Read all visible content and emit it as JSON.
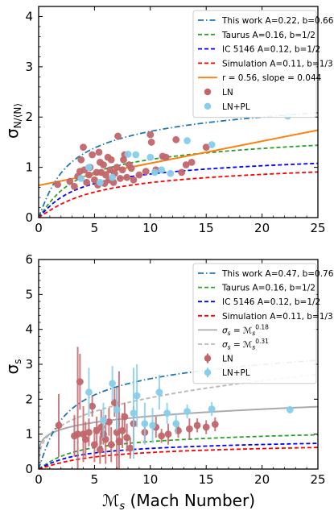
{
  "chart_data": [
    {
      "type": "scatter",
      "xlabel_math": "ℳ",
      "xlabel_sub": "s",
      "xlabel_rest": " (Mach Number)",
      "ylabel_main": "σ",
      "ylabel_sub": "N/⟨N⟩",
      "xlim": [
        0,
        25
      ],
      "ylim": [
        0,
        4.2
      ],
      "xticks": [
        "0",
        "5",
        "10",
        "15",
        "20",
        "25"
      ],
      "yticks": [
        "0",
        "1",
        "2",
        "3",
        "4"
      ],
      "legend_position": "top-right",
      "curves": [
        {
          "name": "This work A=0.22, b=0.66",
          "A": 0.22,
          "b": 0.66,
          "color": "#1f77b4",
          "dash": "dashdot"
        },
        {
          "name": "Taurus A=0.16, b=1/2",
          "A": 0.16,
          "b": 0.5,
          "color": "#2ca02c",
          "dash": "dashed"
        },
        {
          "name": "IC 5146 A=0.12, b=1/2",
          "A": 0.12,
          "b": 0.5,
          "color": "#0000ff",
          "dash": "dashed"
        },
        {
          "name": "Simulation A=0.11, b=1/3",
          "A": 0.11,
          "b": 0.3333,
          "color": "#ff0000",
          "dash": "dashed"
        }
      ],
      "fit_line": {
        "name": "r = 0.56, slope = 0.044",
        "intercept": 0.64,
        "slope": 0.044,
        "color": "#ff7f0e"
      },
      "series": [
        {
          "name": "LN",
          "color": "#c1666b",
          "points": [
            [
              1.7,
              0.66
            ],
            [
              2.8,
              0.72
            ],
            [
              3.2,
              0.62
            ],
            [
              3.5,
              0.82
            ],
            [
              3.7,
              0.92
            ],
            [
              3.8,
              1.15
            ],
            [
              4.0,
              1.4
            ],
            [
              4.1,
              0.95
            ],
            [
              4.3,
              0.7
            ],
            [
              4.5,
              0.85
            ],
            [
              4.6,
              1.0
            ],
            [
              4.8,
              1.25
            ],
            [
              5.0,
              0.75
            ],
            [
              5.2,
              0.9
            ],
            [
              5.3,
              0.65
            ],
            [
              5.4,
              1.3
            ],
            [
              5.5,
              1.1
            ],
            [
              5.6,
              0.9
            ],
            [
              5.8,
              1.05
            ],
            [
              5.9,
              0.68
            ],
            [
              6.0,
              0.85
            ],
            [
              6.2,
              1.2
            ],
            [
              6.3,
              0.75
            ],
            [
              6.4,
              0.95
            ],
            [
              6.5,
              1.15
            ],
            [
              6.7,
              0.7
            ],
            [
              6.8,
              0.88
            ],
            [
              7.0,
              1.0
            ],
            [
              7.1,
              1.62
            ],
            [
              7.3,
              0.78
            ],
            [
              7.5,
              0.95
            ],
            [
              7.6,
              1.15
            ],
            [
              7.7,
              1.25
            ],
            [
              7.9,
              0.8
            ],
            [
              8.1,
              1.05
            ],
            [
              8.3,
              0.98
            ],
            [
              8.5,
              0.75
            ],
            [
              9.0,
              0.85
            ],
            [
              9.6,
              0.92
            ],
            [
              10.0,
              1.65
            ],
            [
              10.1,
              1.5
            ],
            [
              10.5,
              0.95
            ],
            [
              11.1,
              1.22
            ],
            [
              11.4,
              1.2
            ],
            [
              12.3,
              1.55
            ],
            [
              12.8,
              0.9
            ],
            [
              13.2,
              1.05
            ],
            [
              13.7,
              1.1
            ],
            [
              15.0,
              1.4
            ]
          ]
        },
        {
          "name": "LN+PL",
          "color": "#87ceeb",
          "points": [
            [
              3.8,
              0.78
            ],
            [
              4.5,
              1.0
            ],
            [
              5.5,
              0.7
            ],
            [
              6.6,
              0.8
            ],
            [
              8.0,
              1.26
            ],
            [
              8.7,
              1.25
            ],
            [
              10.0,
              1.2
            ],
            [
              10.4,
              0.9
            ],
            [
              11.0,
              0.95
            ],
            [
              11.8,
              0.88
            ],
            [
              13.3,
              1.53
            ],
            [
              15.5,
              1.45
            ],
            [
              22.3,
              2.02
            ]
          ]
        }
      ]
    },
    {
      "type": "scatter",
      "xlabel_math": "ℳ",
      "xlabel_sub": "s",
      "xlabel_rest": " (Mach Number)",
      "ylabel_main": "σ",
      "ylabel_sub": "s",
      "xlim": [
        0,
        25
      ],
      "ylim": [
        0,
        6
      ],
      "xticks": [
        "0",
        "5",
        "10",
        "15",
        "20",
        "25"
      ],
      "yticks": [
        "0",
        "1",
        "2",
        "3",
        "4",
        "5",
        "6"
      ],
      "legend_position": "top-right",
      "curves": [
        {
          "name": "This work A=0.47, b=0.76",
          "A": 0.47,
          "b": 0.76,
          "color": "#1f77b4",
          "dash": "dashdot"
        },
        {
          "name": "Taurus A=0.16, b=1/2",
          "A": 0.16,
          "b": 0.5,
          "color": "#2ca02c",
          "dash": "dashed"
        },
        {
          "name": "IC 5146 A=0.12, b=1/2",
          "A": 0.12,
          "b": 0.5,
          "color": "#0000ff",
          "dash": "dashed"
        },
        {
          "name": "Simulation A=0.11, b=1/3",
          "A": 0.11,
          "b": 0.3333,
          "color": "#ff0000",
          "dash": "dashed"
        }
      ],
      "power_curves": [
        {
          "label_lhs": "σ",
          "label_lhs_sub": "s",
          "label_eq": " = ℳ",
          "label_rhs_sub": "s",
          "label_sup": "0.18",
          "exponent": 0.18,
          "color": "#aaaaaa",
          "dash": "solid"
        },
        {
          "label_lhs": "σ",
          "label_lhs_sub": "s",
          "label_eq": " = ℳ",
          "label_rhs_sub": "s",
          "label_sup": "0.31",
          "exponent": 0.31,
          "color": "#bbbbbb",
          "dash": "dashed"
        }
      ],
      "series": [
        {
          "name": "LN",
          "color": "#c1666b",
          "points": [
            [
              1.8,
              1.25,
              0.9
            ],
            [
              3.2,
              0.95,
              0.6
            ],
            [
              3.5,
              1.0,
              2.5
            ],
            [
              3.7,
              2.5,
              0.8
            ],
            [
              4.0,
              1.0,
              0.8
            ],
            [
              4.2,
              0.85,
              0.5
            ],
            [
              4.5,
              1.05,
              0.4
            ],
            [
              4.8,
              1.8,
              0.3
            ],
            [
              5.0,
              0.7,
              0.5
            ],
            [
              5.2,
              1.1,
              0.4
            ],
            [
              5.5,
              0.55,
              0.4
            ],
            [
              5.6,
              1.2,
              0.5
            ],
            [
              5.8,
              1.0,
              0.3
            ],
            [
              6.0,
              0.85,
              0.7
            ],
            [
              6.3,
              1.35,
              0.4
            ],
            [
              6.5,
              0.7,
              0.5
            ],
            [
              6.8,
              1.9,
              0.4
            ],
            [
              7.0,
              1.05,
              1.3
            ],
            [
              7.2,
              0.8,
              2.0
            ],
            [
              7.5,
              1.1,
              0.5
            ],
            [
              7.7,
              1.5,
              0.4
            ],
            [
              7.9,
              0.9,
              0.4
            ],
            [
              8.2,
              0.6,
              0.3
            ],
            [
              8.5,
              1.3,
              0.5
            ],
            [
              9.5,
              1.05,
              0.3
            ],
            [
              10.5,
              1.2,
              0.3
            ],
            [
              11.0,
              0.95,
              0.2
            ],
            [
              11.6,
              1.0,
              0.3
            ],
            [
              12.5,
              1.1,
              0.2
            ],
            [
              13.5,
              1.15,
              0.3
            ],
            [
              14.2,
              1.25,
              0.2
            ],
            [
              15.0,
              1.2,
              0.2
            ],
            [
              15.8,
              1.28,
              0.2
            ]
          ]
        },
        {
          "name": "LN+PL",
          "color": "#87ceeb",
          "points": [
            [
              4.5,
              2.2,
              0.7
            ],
            [
              5.8,
              1.4,
              0.5
            ],
            [
              6.6,
              2.45,
              0.5
            ],
            [
              7.0,
              1.7,
              0.6
            ],
            [
              8.5,
              1.6,
              1.3
            ],
            [
              8.8,
              2.1,
              0.9
            ],
            [
              9.5,
              1.3,
              0.6
            ],
            [
              10.2,
              1.25,
              0.5
            ],
            [
              10.8,
              2.2,
              0.5
            ],
            [
              11.5,
              1.6,
              0.3
            ],
            [
              12.3,
              1.3,
              0.3
            ],
            [
              13.3,
              1.65,
              0.2
            ],
            [
              15.5,
              1.72,
              0.2
            ],
            [
              22.5,
              1.7,
              0.1
            ]
          ]
        }
      ]
    }
  ]
}
